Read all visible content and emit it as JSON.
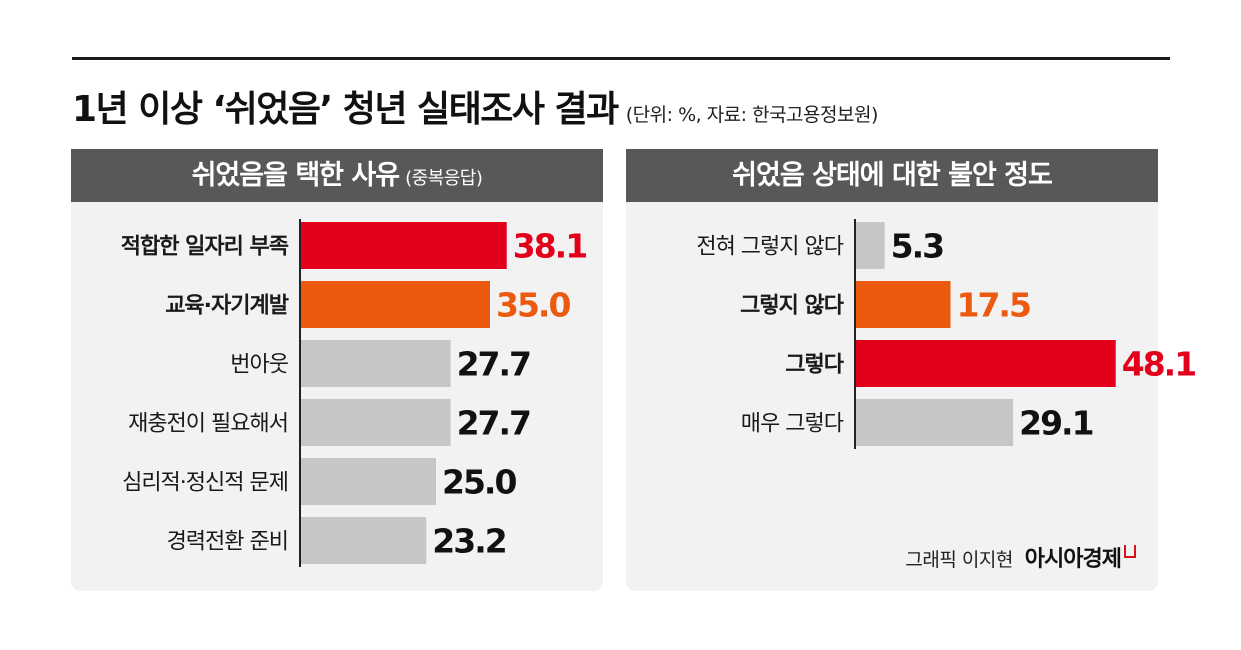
{
  "title": "1년 이상 ‘쉬었음’ 청년 실태조사 결과",
  "subtitle": "(단위: %, 자료: 한국고용정보원)",
  "credit": {
    "author": "그래픽 이지현",
    "brand": "아시아경제"
  },
  "colors": {
    "red": "#e3001b",
    "orange": "#ec5a0f",
    "gray": "#c6c6c6",
    "header": "#595757",
    "panel": "#f2f2f2"
  },
  "chart_data": [
    {
      "type": "bar",
      "orientation": "horizontal",
      "title": "쉬었음을 택한 사유",
      "title_note": "(중복응답)",
      "categories": [
        "적합한 일자리 부족",
        "교육·자기계발",
        "번아웃",
        "재충전이 필요해서",
        "심리적·정신적 문제",
        "경력전환 준비"
      ],
      "values": [
        38.1,
        35.0,
        27.7,
        27.7,
        25.0,
        23.2
      ],
      "value_labels": [
        "38.1",
        "35.0",
        "27.7",
        "27.7",
        "25.0",
        "23.2"
      ],
      "bar_colors": [
        "red",
        "orange",
        "gray",
        "gray",
        "gray",
        "gray"
      ],
      "bold_labels": [
        true,
        true,
        false,
        false,
        false,
        false
      ]
    },
    {
      "type": "bar",
      "orientation": "horizontal",
      "title": "쉬었음 상태에 대한 불안 정도",
      "categories": [
        "전혀 그렇지 않다",
        "그렇지 않다",
        "그렇다",
        "매우 그렇다"
      ],
      "values": [
        5.3,
        17.5,
        48.1,
        29.1
      ],
      "value_labels": [
        "5.3",
        "17.5",
        "48.1",
        "29.1"
      ],
      "bar_colors": [
        "gray",
        "orange",
        "red",
        "gray"
      ],
      "bold_labels": [
        false,
        true,
        true,
        false
      ]
    }
  ]
}
